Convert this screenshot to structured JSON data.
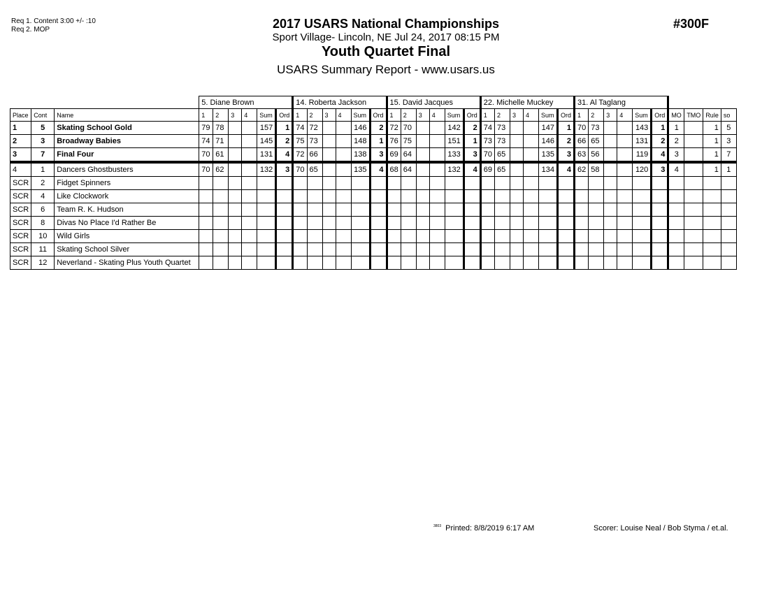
{
  "requirements": [
    "Req  1.  Content 3:00 +/- :10",
    "Req  2.  MOP"
  ],
  "header": {
    "title": "2017 USARS National Championships",
    "venue": "Sport Village- Lincoln, NE  Jul 24, 2017  08:15 PM",
    "event": "Youth Quartet Final",
    "report": "USARS Summary Report - www.usars.us",
    "event_number": "#300F"
  },
  "judges": [
    "5.  Diane Brown",
    "14.  Roberta Jackson",
    "15.  David Jacques",
    "22.  Michelle Muckey",
    "31.  Al Taglang"
  ],
  "columns": {
    "place": "Place",
    "cont": "Cont",
    "name": "Name",
    "judge_cols": [
      "1",
      "2",
      "3",
      "4",
      "Sum",
      "Ord"
    ],
    "mo": "MO",
    "tmo": "TMO",
    "rule": "Rule",
    "so": "so"
  },
  "rows": [
    {
      "place": "1",
      "cont": "5",
      "name": "Skating School Gold",
      "scores": [
        [
          "79",
          "78",
          "",
          "",
          "157",
          "1"
        ],
        [
          "74",
          "72",
          "",
          "",
          "146",
          "2"
        ],
        [
          "72",
          "70",
          "",
          "",
          "142",
          "2"
        ],
        [
          "74",
          "73",
          "",
          "",
          "147",
          "1"
        ],
        [
          "70",
          "73",
          "",
          "",
          "143",
          "1"
        ]
      ],
      "mo": "1",
      "tmo": "",
      "rule": "1",
      "so": "5"
    },
    {
      "place": "2",
      "cont": "3",
      "name": "Broadway Babies",
      "scores": [
        [
          "74",
          "71",
          "",
          "",
          "145",
          "2"
        ],
        [
          "75",
          "73",
          "",
          "",
          "148",
          "1"
        ],
        [
          "76",
          "75",
          "",
          "",
          "151",
          "1"
        ],
        [
          "73",
          "73",
          "",
          "",
          "146",
          "2"
        ],
        [
          "66",
          "65",
          "",
          "",
          "131",
          "2"
        ]
      ],
      "mo": "2",
      "tmo": "",
      "rule": "1",
      "so": "3"
    },
    {
      "place": "3",
      "cont": "7",
      "name": "Final Four",
      "scores": [
        [
          "70",
          "61",
          "",
          "",
          "131",
          "4"
        ],
        [
          "72",
          "66",
          "",
          "",
          "138",
          "3"
        ],
        [
          "69",
          "64",
          "",
          "",
          "133",
          "3"
        ],
        [
          "70",
          "65",
          "",
          "",
          "135",
          "3"
        ],
        [
          "63",
          "56",
          "",
          "",
          "119",
          "4"
        ]
      ],
      "mo": "3",
      "tmo": "",
      "rule": "1",
      "so": "7"
    },
    {
      "place": "4",
      "cont": "1",
      "name": "Dancers Ghostbusters",
      "scores": [
        [
          "70",
          "62",
          "",
          "",
          "132",
          "3"
        ],
        [
          "70",
          "65",
          "",
          "",
          "135",
          "4"
        ],
        [
          "68",
          "64",
          "",
          "",
          "132",
          "4"
        ],
        [
          "69",
          "65",
          "",
          "",
          "134",
          "4"
        ],
        [
          "62",
          "58",
          "",
          "",
          "120",
          "3"
        ]
      ],
      "mo": "4",
      "tmo": "",
      "rule": "1",
      "so": "1"
    },
    {
      "place": "SCR",
      "cont": "2",
      "name": "Fidget Spinners"
    },
    {
      "place": "SCR",
      "cont": "4",
      "name": "Like Clockwork"
    },
    {
      "place": "SCR",
      "cont": "6",
      "name": "Team R. K. Hudson"
    },
    {
      "place": "SCR",
      "cont": "8",
      "name": "Divas No Place I'd Rather Be"
    },
    {
      "place": "SCR",
      "cont": "10",
      "name": "Wild Girls"
    },
    {
      "place": "SCR",
      "cont": "11",
      "name": "Skating School Silver"
    },
    {
      "place": "SCR",
      "cont": "12",
      "name": "Neverland - Skating Plus Youth Quartet"
    }
  ],
  "footer": {
    "code": "3803",
    "printed": "Printed:  8/8/2019  6:17 AM",
    "scorer": "Scorer:   Louise Neal / Bob Styma / et.al."
  }
}
